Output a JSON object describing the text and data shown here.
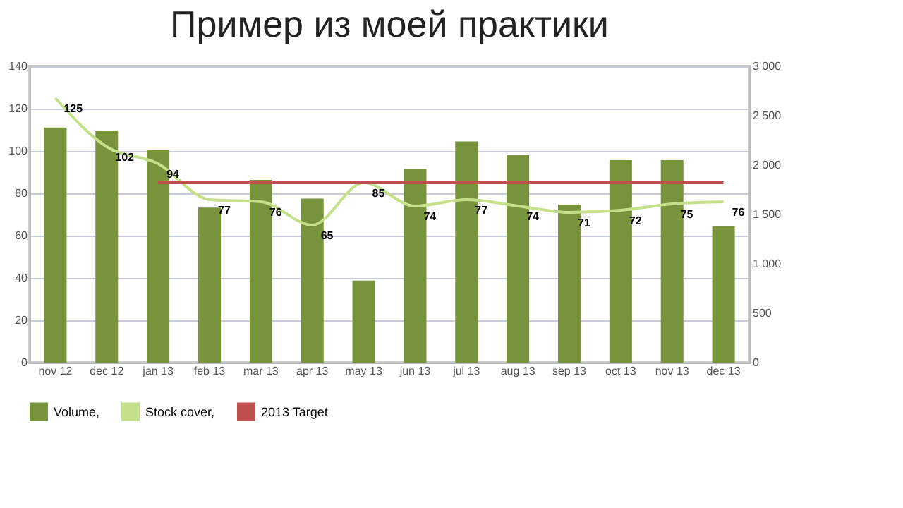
{
  "chart_data": {
    "type": "bar",
    "title": "Пример из моей практики",
    "categories": [
      "nov 12",
      "dec 12",
      "jan 13",
      "feb 13",
      "mar 13",
      "apr 13",
      "may 13",
      "jun 13",
      "jul 13",
      "aug 13",
      "sep 13",
      "oct 13",
      "nov 13",
      "dec 13"
    ],
    "series": [
      {
        "name": "Volume,",
        "axis": "y2",
        "color": "#77933c",
        "values": [
          2380,
          2350,
          2150,
          1570,
          1850,
          1660,
          830,
          1960,
          2240,
          2100,
          1600,
          2050,
          2050,
          1380
        ]
      },
      {
        "name": "Stock cover,",
        "type": "line",
        "color": "#c5e08a",
        "values": [
          125,
          102,
          94,
          77,
          76,
          65,
          85,
          74,
          77,
          74,
          71,
          72,
          75,
          76
        ],
        "value_labels": [
          "125",
          "102",
          "94",
          "77",
          "76",
          "65",
          "85",
          "74",
          "77",
          "74",
          "71",
          "72",
          "75",
          "76"
        ]
      },
      {
        "name": "2013 Target",
        "type": "line",
        "color": "#c0504d",
        "values": [
          null,
          null,
          85,
          85,
          85,
          85,
          85,
          85,
          85,
          85,
          85,
          85,
          85,
          85
        ]
      }
    ],
    "ylim": [
      0,
      140
    ],
    "yticks": [
      0,
      20,
      40,
      60,
      80,
      100,
      120,
      140
    ],
    "y2lim": [
      0,
      3000
    ],
    "y2ticks": [
      0,
      {
        "value": 500,
        "label": "500"
      },
      {
        "value": 1000,
        "label": "1 000"
      },
      {
        "value": 1500,
        "label": "1 500"
      },
      {
        "value": 2000,
        "label": "2 000"
      },
      {
        "value": 2500,
        "label": "2 500"
      },
      {
        "value": 3000,
        "label": "3 000"
      }
    ],
    "grid": "y",
    "legend": "bottom",
    "line_style": "solid"
  }
}
